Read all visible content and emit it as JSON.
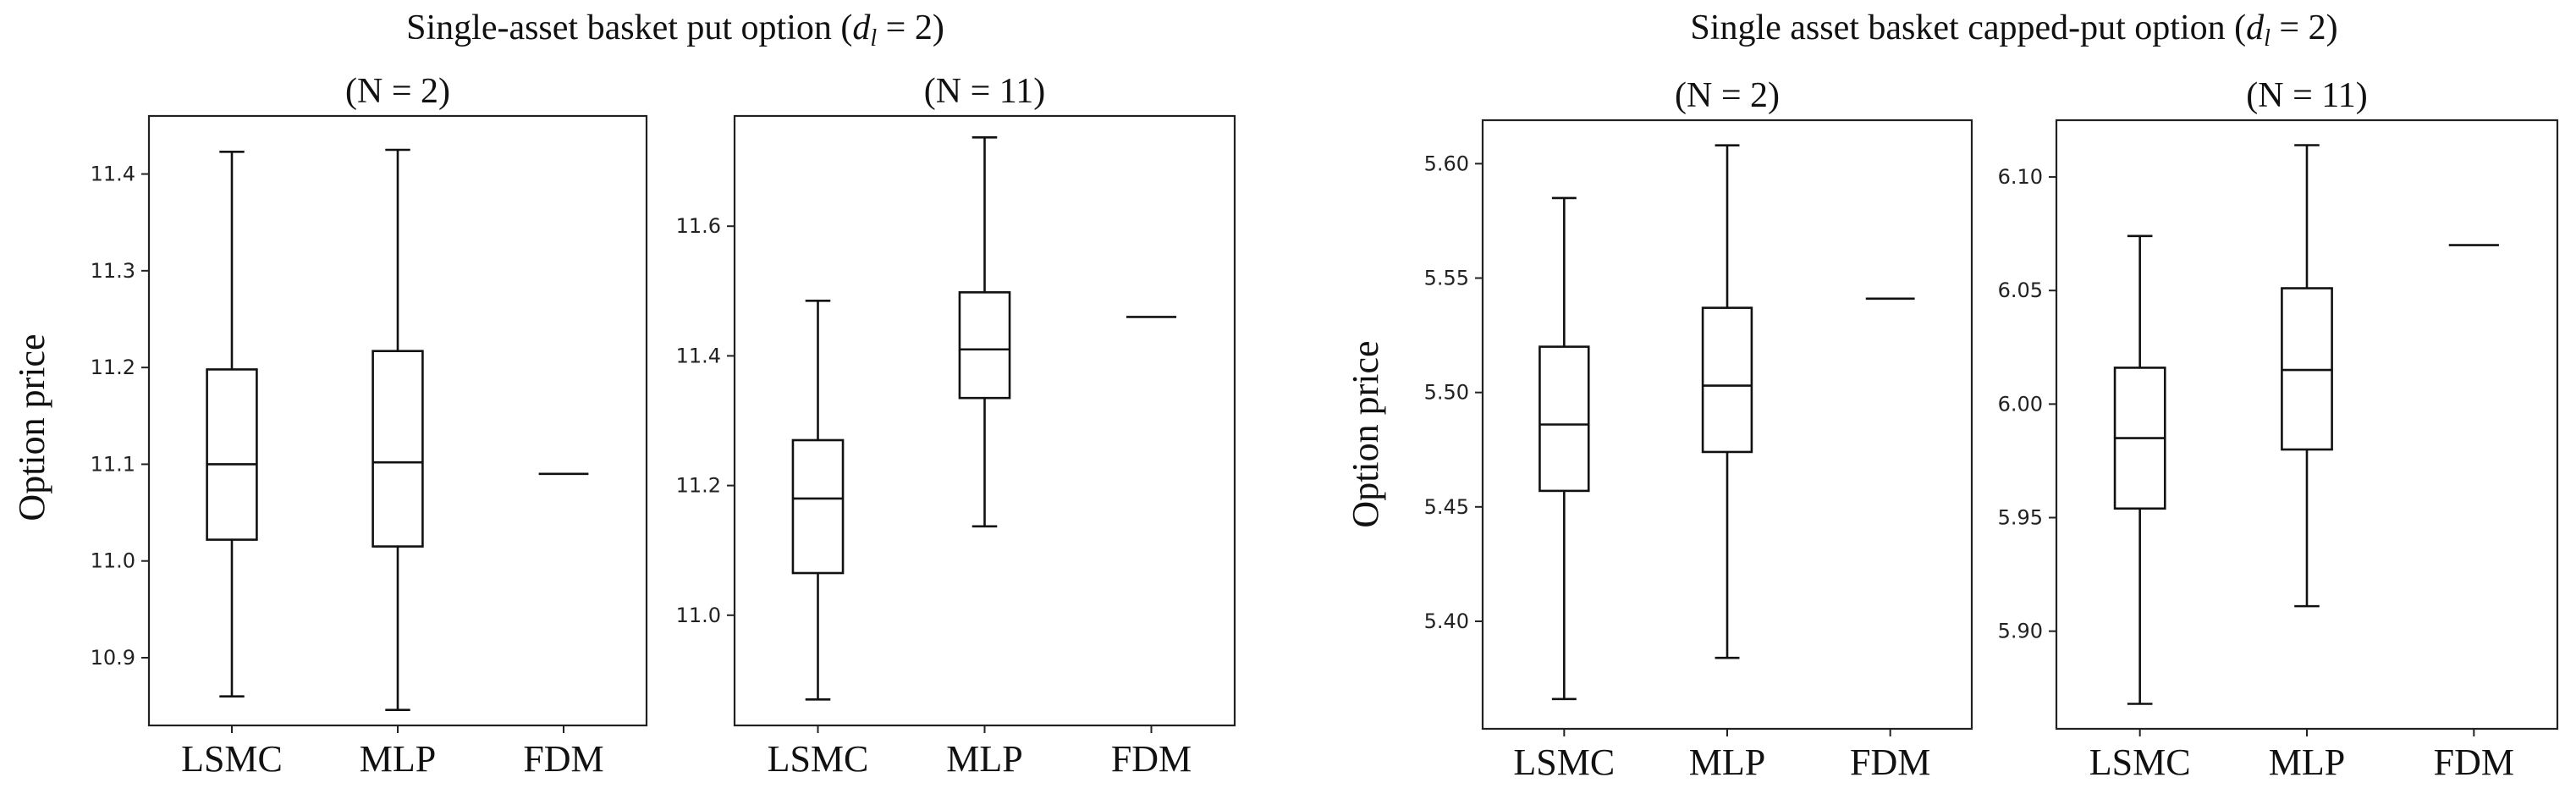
{
  "titles": {
    "left": "Single-asset basket put option (",
    "right": "Single asset basket capped-put option ("
  },
  "title_math": "d",
  "title_math_sub": "l",
  "title_math_tail": " = 2)",
  "ylabel": "Option price",
  "categories": [
    "LSMC",
    "MLP",
    "FDM"
  ],
  "chart_data": [
    {
      "type": "box",
      "title": "(N = 2)",
      "group_title": "Single-asset basket put option (d_l = 2)",
      "ylabel": "Option price",
      "categories": [
        "LSMC",
        "MLP",
        "FDM"
      ],
      "ylim": [
        10.83,
        11.46
      ],
      "yticks": [
        10.9,
        11.0,
        11.1,
        11.2,
        11.3,
        11.4
      ],
      "ytick_labels": [
        "10.9",
        "11.0",
        "11.1",
        "11.2",
        "11.3",
        "11.4"
      ],
      "grid": false,
      "boxes": [
        {
          "name": "LSMC",
          "whislo": 10.86,
          "q1": 11.022,
          "med": 11.1,
          "q3": 11.198,
          "whishi": 11.423
        },
        {
          "name": "MLP",
          "whislo": 10.846,
          "q1": 11.015,
          "med": 11.102,
          "q3": 11.217,
          "whishi": 11.425
        },
        {
          "name": "FDM",
          "value": 11.09
        }
      ]
    },
    {
      "type": "box",
      "title": "(N = 11)",
      "group_title": "Single-asset basket put option (d_l = 2)",
      "categories": [
        "LSMC",
        "MLP",
        "FDM"
      ],
      "ylim": [
        10.83,
        11.77
      ],
      "yticks": [
        11.0,
        11.2,
        11.4,
        11.6
      ],
      "ytick_labels": [
        "11.0",
        "11.2",
        "11.4",
        "11.6"
      ],
      "grid": false,
      "boxes": [
        {
          "name": "LSMC",
          "whislo": 10.87,
          "q1": 11.065,
          "med": 11.18,
          "q3": 11.27,
          "whishi": 11.485
        },
        {
          "name": "MLP",
          "whislo": 11.137,
          "q1": 11.335,
          "med": 11.41,
          "q3": 11.498,
          "whishi": 11.737
        },
        {
          "name": "FDM",
          "value": 11.46
        }
      ]
    },
    {
      "type": "box",
      "title": "(N = 2)",
      "group_title": "Single asset basket capped-put option (d_l = 2)",
      "ylabel": "Option price",
      "categories": [
        "LSMC",
        "MLP",
        "FDM"
      ],
      "ylim": [
        5.353,
        5.619
      ],
      "yticks": [
        5.4,
        5.45,
        5.5,
        5.55,
        5.6
      ],
      "ytick_labels": [
        "5.40",
        "5.45",
        "5.50",
        "5.55",
        "5.60"
      ],
      "grid": false,
      "boxes": [
        {
          "name": "LSMC",
          "whislo": 5.366,
          "q1": 5.457,
          "med": 5.486,
          "q3": 5.52,
          "whishi": 5.585
        },
        {
          "name": "MLP",
          "whislo": 5.384,
          "q1": 5.474,
          "med": 5.503,
          "q3": 5.537,
          "whishi": 5.608
        },
        {
          "name": "FDM",
          "value": 5.541
        }
      ]
    },
    {
      "type": "box",
      "title": "(N = 11)",
      "group_title": "Single asset basket capped-put option (d_l = 2)",
      "categories": [
        "LSMC",
        "MLP",
        "FDM"
      ],
      "ylim": [
        5.857,
        6.125
      ],
      "yticks": [
        5.9,
        5.95,
        6.0,
        6.05,
        6.1
      ],
      "ytick_labels": [
        "5.90",
        "5.95",
        "6.00",
        "6.05",
        "6.10"
      ],
      "grid": false,
      "boxes": [
        {
          "name": "LSMC",
          "whislo": 5.868,
          "q1": 5.954,
          "med": 5.985,
          "q3": 6.016,
          "whishi": 6.074
        },
        {
          "name": "MLP",
          "whislo": 5.911,
          "q1": 5.98,
          "med": 6.015,
          "q3": 6.051,
          "whishi": 6.114
        },
        {
          "name": "FDM",
          "value": 6.07
        }
      ]
    }
  ]
}
